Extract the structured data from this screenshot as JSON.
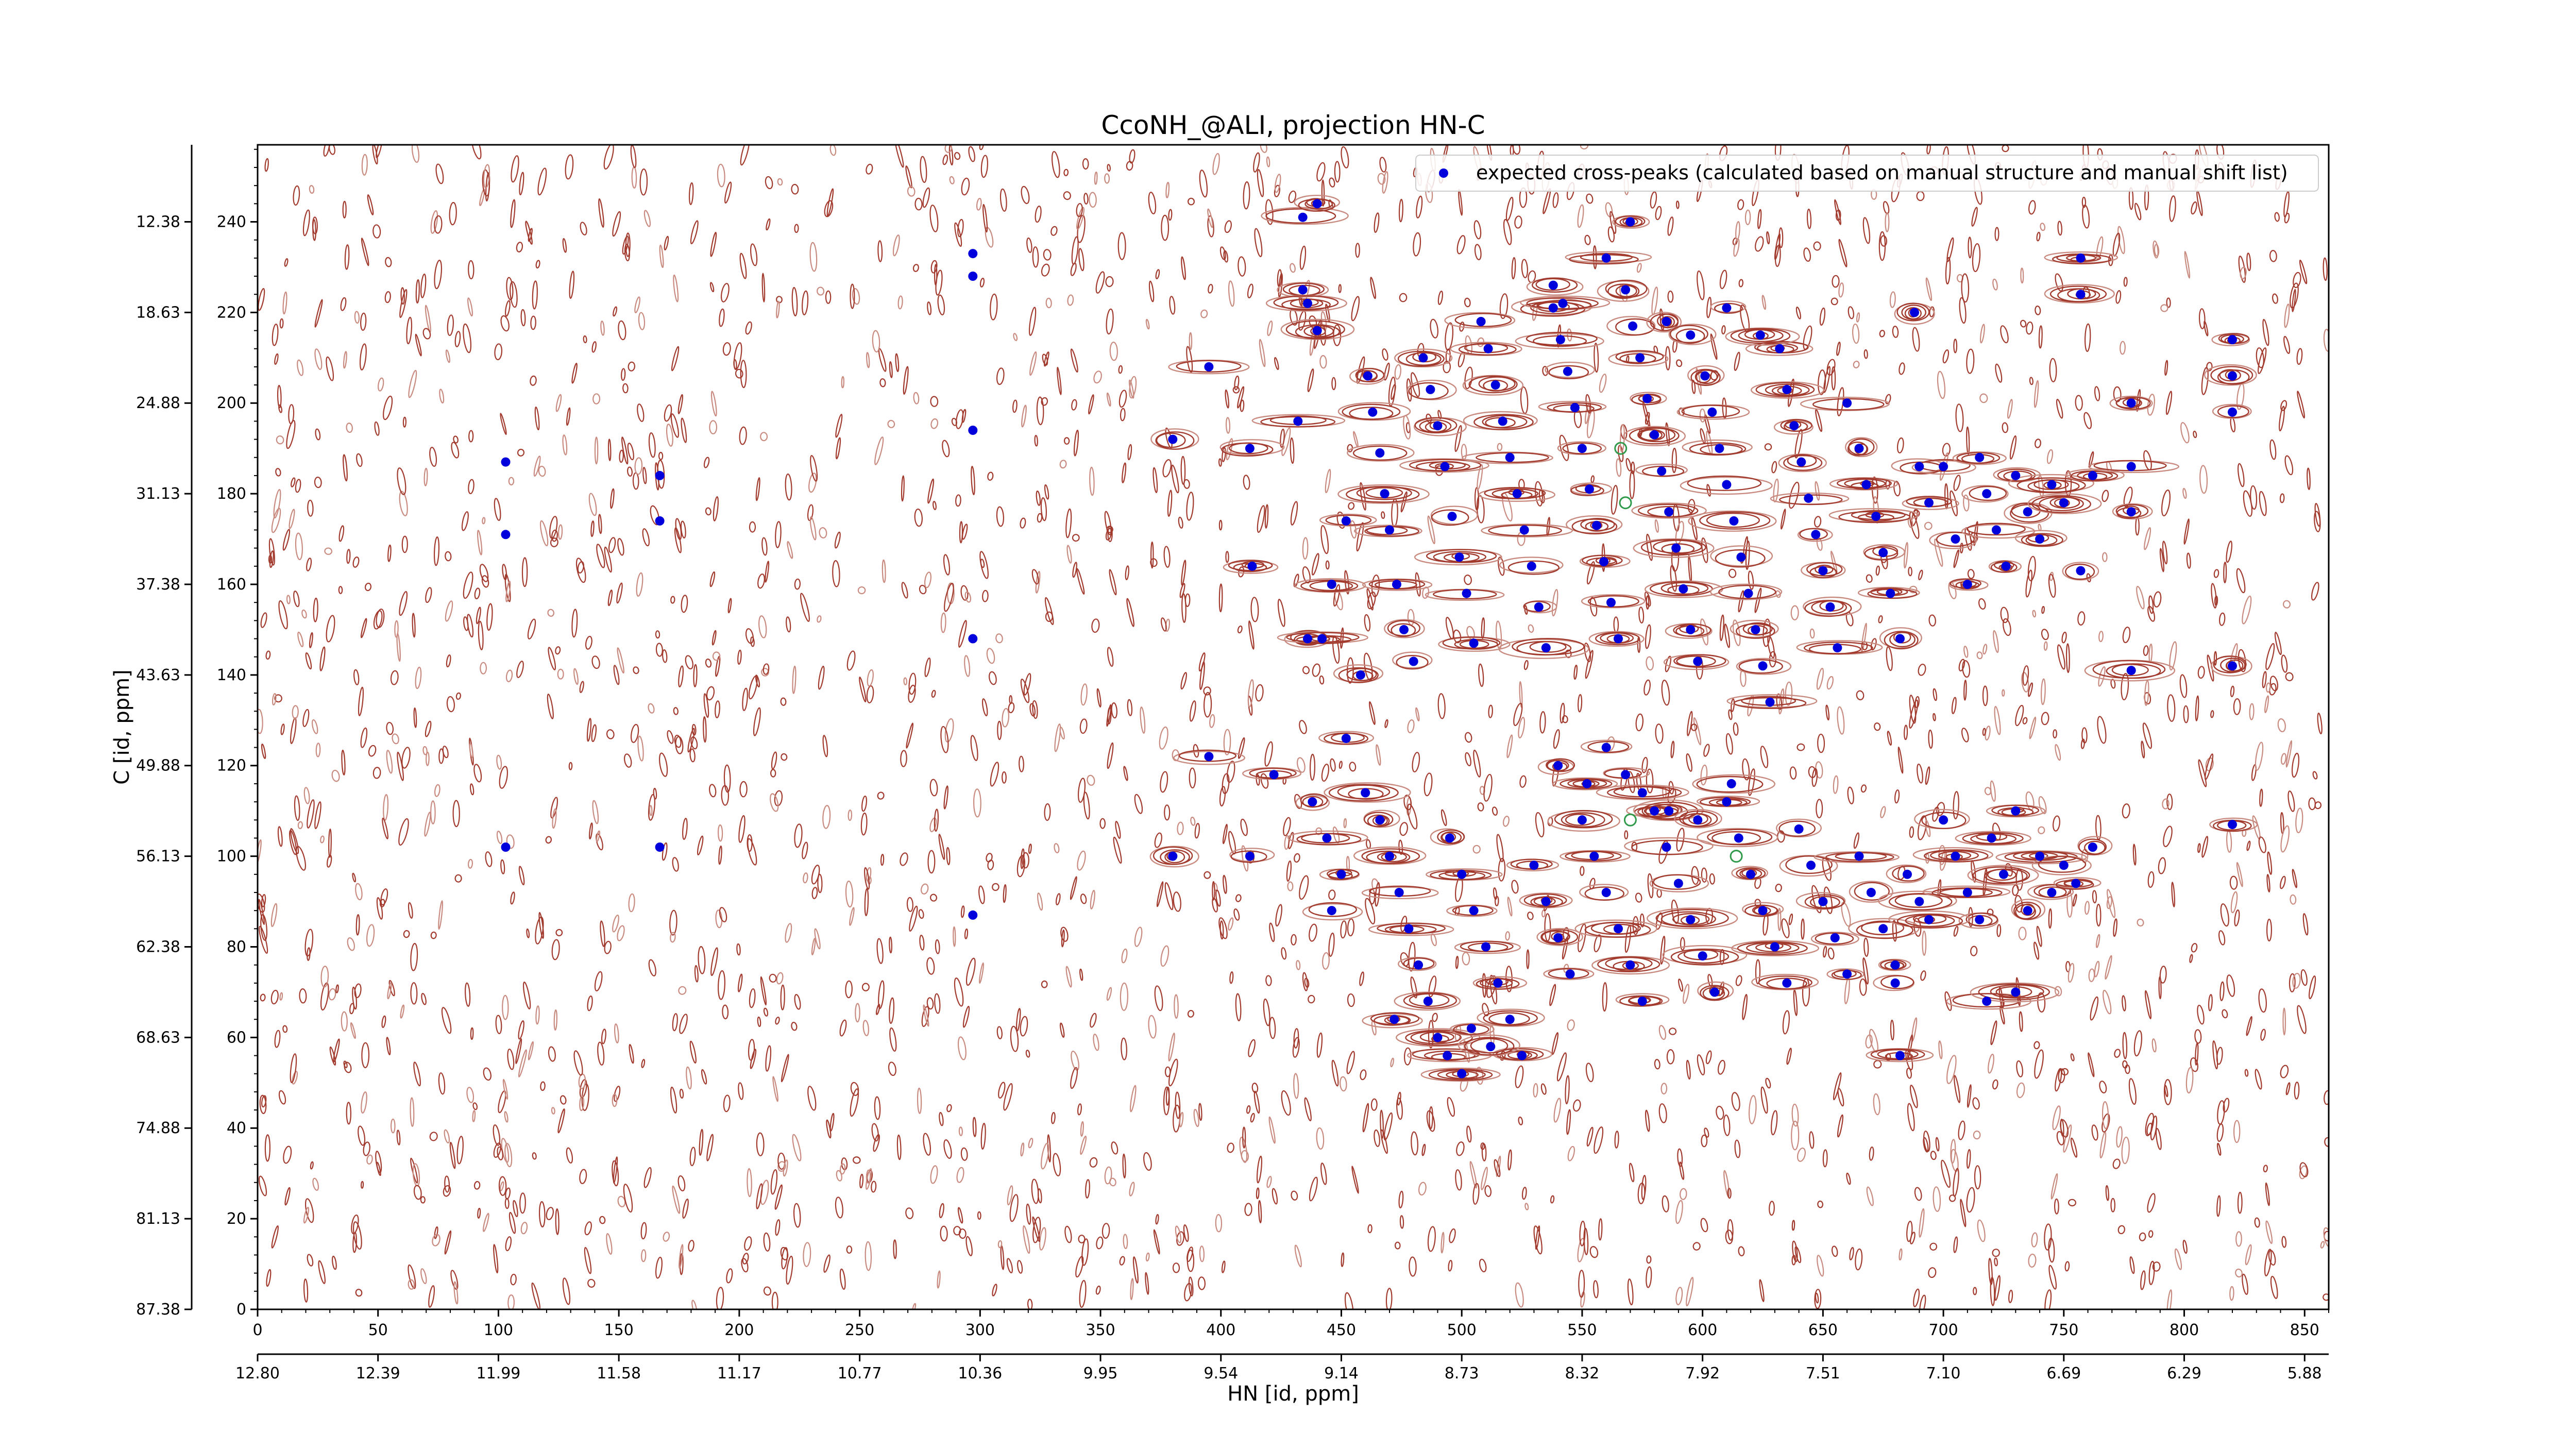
{
  "chart_data": {
    "type": "scatter",
    "title": "CcoNH_@ALI, projection HN-C",
    "xlabel": "HN [id, ppm]",
    "ylabel": "C [id, ppm]",
    "xlim": [
      0,
      860
    ],
    "ylim": [
      0,
      257
    ],
    "x_ticks": [
      0,
      50,
      100,
      150,
      200,
      250,
      300,
      350,
      400,
      450,
      500,
      550,
      600,
      650,
      700,
      750,
      800,
      850
    ],
    "x_ppm_ticks": [
      "12.80",
      "12.39",
      "11.99",
      "11.58",
      "11.17",
      "10.77",
      "10.36",
      "9.95",
      "9.54",
      "9.14",
      "8.73",
      "8.32",
      "7.92",
      "7.51",
      "7.10",
      "6.69",
      "6.29",
      "5.88"
    ],
    "y_ticks": [
      0,
      20,
      40,
      60,
      80,
      100,
      120,
      140,
      160,
      180,
      200,
      220,
      240
    ],
    "y_ppm_ticks": [
      "87.38",
      "81.13",
      "74.88",
      "68.63",
      "62.38",
      "56.13",
      "49.88",
      "43.63",
      "37.38",
      "31.13",
      "24.88",
      "18.63",
      "12.38"
    ],
    "legend": {
      "label": "expected cross-peaks (calculated based on manual structure and manual shift list)",
      "position": "top-right"
    },
    "grid": false,
    "colors": {
      "peaks": "#0000dd",
      "contour": "#a23a2e",
      "contour_light": "#c98b80",
      "picked": "#2f9a4a"
    },
    "series": [
      {
        "name": "expected cross-peaks (calculated based on manual structure and manual shift list)",
        "points": [
          [
            297,
            233
          ],
          [
            297,
            228
          ],
          [
            297,
            194
          ],
          [
            297,
            148
          ],
          [
            297,
            87
          ],
          [
            103,
            187
          ],
          [
            103,
            171
          ],
          [
            103,
            102
          ],
          [
            167,
            184
          ],
          [
            167,
            174
          ],
          [
            167,
            102
          ],
          [
            380,
            192
          ],
          [
            380,
            100
          ],
          [
            395,
            208
          ],
          [
            395,
            122
          ],
          [
            412,
            190
          ],
          [
            412,
            100
          ],
          [
            413,
            164
          ],
          [
            422,
            118
          ],
          [
            434,
            241
          ],
          [
            434,
            225
          ],
          [
            436,
            222
          ],
          [
            440,
            244
          ],
          [
            440,
            216
          ],
          [
            432,
            196
          ],
          [
            436,
            148
          ],
          [
            442,
            148
          ],
          [
            446,
            160
          ],
          [
            452,
            174
          ],
          [
            458,
            140
          ],
          [
            461,
            206
          ],
          [
            463,
            198
          ],
          [
            466,
            189
          ],
          [
            468,
            180
          ],
          [
            470,
            172
          ],
          [
            473,
            160
          ],
          [
            476,
            150
          ],
          [
            480,
            143
          ],
          [
            484,
            210
          ],
          [
            487,
            203
          ],
          [
            490,
            195
          ],
          [
            493,
            186
          ],
          [
            496,
            175
          ],
          [
            499,
            166
          ],
          [
            502,
            158
          ],
          [
            505,
            147
          ],
          [
            508,
            218
          ],
          [
            511,
            212
          ],
          [
            514,
            204
          ],
          [
            517,
            196
          ],
          [
            520,
            188
          ],
          [
            523,
            180
          ],
          [
            526,
            172
          ],
          [
            529,
            164
          ],
          [
            532,
            155
          ],
          [
            535,
            146
          ],
          [
            538,
            221
          ],
          [
            541,
            214
          ],
          [
            544,
            207
          ],
          [
            547,
            199
          ],
          [
            550,
            190
          ],
          [
            553,
            181
          ],
          [
            556,
            173
          ],
          [
            559,
            165
          ],
          [
            562,
            156
          ],
          [
            565,
            148
          ],
          [
            568,
            225
          ],
          [
            571,
            217
          ],
          [
            574,
            210
          ],
          [
            577,
            201
          ],
          [
            580,
            193
          ],
          [
            583,
            185
          ],
          [
            586,
            176
          ],
          [
            589,
            168
          ],
          [
            592,
            159
          ],
          [
            595,
            150
          ],
          [
            598,
            143
          ],
          [
            601,
            206
          ],
          [
            604,
            198
          ],
          [
            607,
            190
          ],
          [
            610,
            182
          ],
          [
            613,
            174
          ],
          [
            616,
            166
          ],
          [
            619,
            158
          ],
          [
            622,
            150
          ],
          [
            625,
            142
          ],
          [
            628,
            134
          ],
          [
            632,
            212
          ],
          [
            635,
            203
          ],
          [
            638,
            195
          ],
          [
            641,
            187
          ],
          [
            644,
            179
          ],
          [
            647,
            171
          ],
          [
            650,
            163
          ],
          [
            653,
            155
          ],
          [
            656,
            146
          ],
          [
            660,
            200
          ],
          [
            665,
            190
          ],
          [
            668,
            182
          ],
          [
            672,
            175
          ],
          [
            675,
            167
          ],
          [
            678,
            158
          ],
          [
            682,
            148
          ],
          [
            688,
            220
          ],
          [
            690,
            186
          ],
          [
            694,
            178
          ],
          [
            700,
            186
          ],
          [
            705,
            170
          ],
          [
            710,
            160
          ],
          [
            715,
            188
          ],
          [
            718,
            180
          ],
          [
            722,
            172
          ],
          [
            726,
            164
          ],
          [
            730,
            184
          ],
          [
            735,
            176
          ],
          [
            740,
            170
          ],
          [
            745,
            182
          ],
          [
            750,
            178
          ],
          [
            757,
            232
          ],
          [
            757,
            224
          ],
          [
            757,
            163
          ],
          [
            762,
            184
          ],
          [
            778,
            200
          ],
          [
            778,
            186
          ],
          [
            778,
            176
          ],
          [
            778,
            141
          ],
          [
            820,
            214
          ],
          [
            820,
            206
          ],
          [
            820,
            198
          ],
          [
            820,
            142
          ],
          [
            820,
            107
          ],
          [
            570,
            240
          ],
          [
            538,
            226
          ],
          [
            542,
            222
          ],
          [
            560,
            232
          ],
          [
            585,
            218
          ],
          [
            595,
            215
          ],
          [
            610,
            221
          ],
          [
            624,
            215
          ],
          [
            452,
            126
          ],
          [
            460,
            114
          ],
          [
            466,
            108
          ],
          [
            470,
            100
          ],
          [
            474,
            92
          ],
          [
            478,
            84
          ],
          [
            482,
            76
          ],
          [
            486,
            68
          ],
          [
            490,
            60
          ],
          [
            495,
            104
          ],
          [
            500,
            96
          ],
          [
            505,
            88
          ],
          [
            510,
            80
          ],
          [
            515,
            72
          ],
          [
            520,
            64
          ],
          [
            525,
            56
          ],
          [
            530,
            98
          ],
          [
            535,
            90
          ],
          [
            540,
            82
          ],
          [
            545,
            74
          ],
          [
            550,
            108
          ],
          [
            555,
            100
          ],
          [
            560,
            92
          ],
          [
            565,
            84
          ],
          [
            570,
            76
          ],
          [
            575,
            68
          ],
          [
            580,
            110
          ],
          [
            585,
            102
          ],
          [
            590,
            94
          ],
          [
            595,
            86
          ],
          [
            600,
            78
          ],
          [
            605,
            70
          ],
          [
            610,
            112
          ],
          [
            615,
            104
          ],
          [
            620,
            96
          ],
          [
            625,
            88
          ],
          [
            630,
            80
          ],
          [
            635,
            72
          ],
          [
            640,
            106
          ],
          [
            645,
            98
          ],
          [
            650,
            90
          ],
          [
            655,
            82
          ],
          [
            660,
            74
          ],
          [
            665,
            100
          ],
          [
            670,
            92
          ],
          [
            675,
            84
          ],
          [
            680,
            76
          ],
          [
            685,
            96
          ],
          [
            690,
            90
          ],
          [
            700,
            108
          ],
          [
            705,
            100
          ],
          [
            710,
            92
          ],
          [
            715,
            86
          ],
          [
            720,
            104
          ],
          [
            725,
            96
          ],
          [
            730,
            110
          ],
          [
            735,
            88
          ],
          [
            740,
            100
          ],
          [
            745,
            92
          ],
          [
            750,
            98
          ],
          [
            755,
            94
          ],
          [
            762,
            102
          ],
          [
            438,
            112
          ],
          [
            444,
            104
          ],
          [
            446,
            88
          ],
          [
            450,
            96
          ],
          [
            472,
            64
          ],
          [
            494,
            56
          ],
          [
            500,
            52
          ],
          [
            504,
            62
          ],
          [
            512,
            58
          ],
          [
            540,
            120
          ],
          [
            552,
            116
          ],
          [
            560,
            124
          ],
          [
            568,
            118
          ],
          [
            575,
            114
          ],
          [
            586,
            110
          ],
          [
            598,
            108
          ],
          [
            612,
            116
          ],
          [
            680,
            72
          ],
          [
            682,
            56
          ],
          [
            694,
            86
          ],
          [
            718,
            68
          ],
          [
            730,
            70
          ]
        ]
      }
    ]
  }
}
